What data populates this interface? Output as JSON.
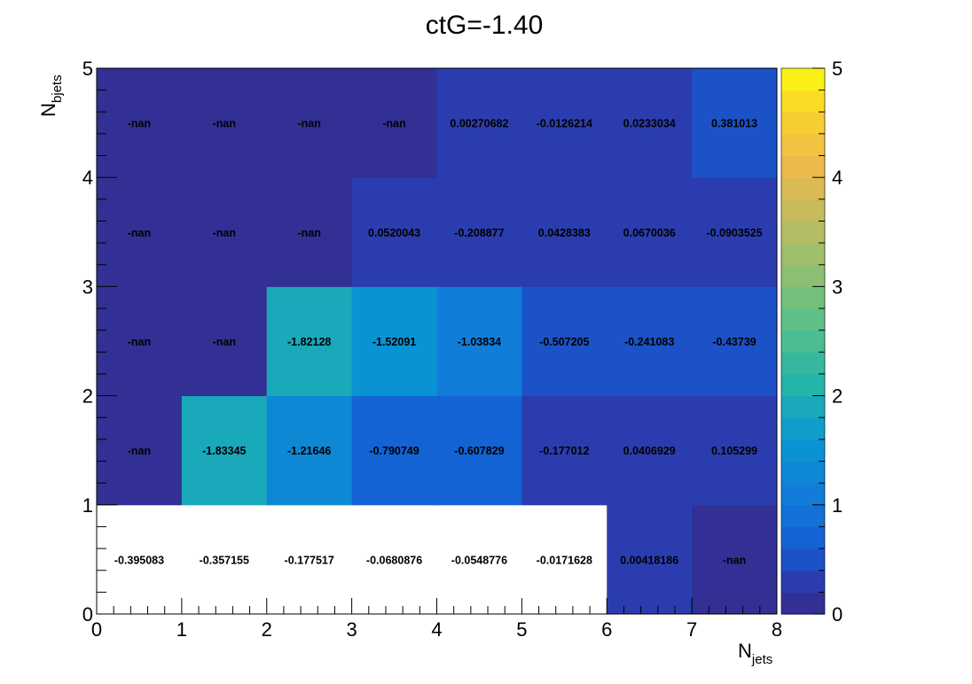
{
  "chart_data": {
    "type": "heatmap",
    "title": "ctG=-1.40",
    "xlabel": "N",
    "xlabel_sub": "jets",
    "ylabel": "N",
    "ylabel_sub": "bjets",
    "x_edges": [
      0,
      1,
      2,
      3,
      4,
      5,
      6,
      7,
      8
    ],
    "y_edges": [
      0,
      1,
      2,
      3,
      4,
      5
    ],
    "xlim": [
      0,
      8
    ],
    "ylim": [
      0,
      5
    ],
    "colorbar": {
      "min": 0,
      "max": 5,
      "ticks": [
        0,
        1,
        2,
        3,
        4,
        5
      ],
      "palette": "parula"
    },
    "cells": [
      [
        "-0.395083",
        "-0.357155",
        "-0.177517",
        "-0.0680876",
        "-0.0548776",
        "-0.0171628",
        "0.00418186",
        "-nan"
      ],
      [
        "-nan",
        "-1.83345",
        "-1.21646",
        "-0.790749",
        "-0.607829",
        "-0.177012",
        "0.0406929",
        "0.105299"
      ],
      [
        "-nan",
        "-nan",
        "-1.82128",
        "-1.52091",
        "-1.03834",
        "-0.507205",
        "-0.241083",
        "-0.43739"
      ],
      [
        "-nan",
        "-nan",
        "-nan",
        "0.0520043",
        "-0.208877",
        "0.0428383",
        "0.0670036",
        "-0.0903525"
      ],
      [
        "-nan",
        "-nan",
        "-nan",
        "-nan",
        "0.00270682",
        "-0.0126214",
        "0.0233034",
        "0.381013"
      ]
    ],
    "cell_fill_values": [
      [
        null,
        null,
        null,
        null,
        null,
        null,
        0.3,
        0.0
      ],
      [
        0.0,
        1.9,
        1.22,
        0.79,
        0.61,
        0.3,
        0.3,
        0.3
      ],
      [
        0.0,
        0.0,
        1.82,
        1.52,
        1.04,
        0.55,
        0.45,
        0.45
      ],
      [
        0.0,
        0.0,
        0.0,
        0.3,
        0.3,
        0.3,
        0.3,
        0.3
      ],
      [
        0.0,
        0.0,
        0.0,
        0.0,
        0.3,
        0.3,
        0.3,
        0.45
      ]
    ]
  }
}
